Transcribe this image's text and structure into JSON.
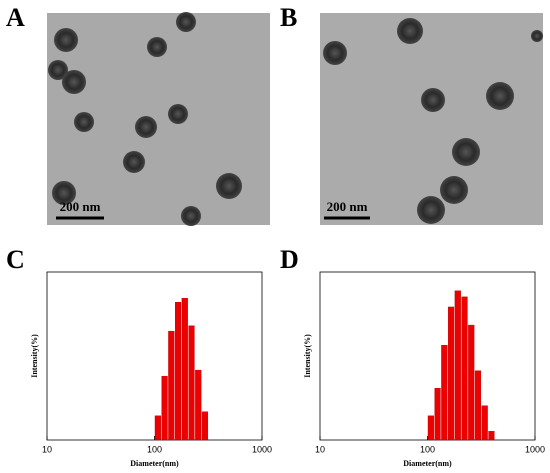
{
  "panel_labels": [
    "A",
    "B",
    "C",
    "D"
  ],
  "micrographs": [
    {
      "scale_bar": "200 nm"
    },
    {
      "scale_bar": "200 nm"
    }
  ],
  "chart_data": [
    {
      "type": "histogram",
      "xlabel": "Diameter(nm)",
      "ylabel": "Intensity(%)",
      "bins": [
        100,
        115.5,
        133.4,
        154.1,
        178,
        205.6,
        237.5,
        274.3,
        316.8
      ],
      "values": [
        3.6,
        9.5,
        16.2,
        20.5,
        21.1,
        17.0,
        10.4,
        4.2
      ],
      "color": "#ee0000",
      "xlog": true,
      "xlim": [
        10,
        1000
      ],
      "xticks": [
        10,
        100,
        1000
      ],
      "ylim": [
        0,
        25
      ]
    },
    {
      "type": "histogram",
      "xlabel": "Diameter(nm)",
      "ylabel": "Intensity(%)",
      "bins": [
        100,
        115.5,
        133.4,
        154.1,
        178,
        205.6,
        237.5,
        274.3,
        316.8,
        365.9,
        422.6
      ],
      "values": [
        3.6,
        7.7,
        14.1,
        19.8,
        22.2,
        21.3,
        17.1,
        10.3,
        5.1,
        1.3
      ],
      "color": "#ee0000",
      "xlog": true,
      "xlim": [
        10,
        1000
      ],
      "xticks": [
        10,
        100,
        1000
      ],
      "ylim": [
        0,
        25
      ]
    }
  ]
}
